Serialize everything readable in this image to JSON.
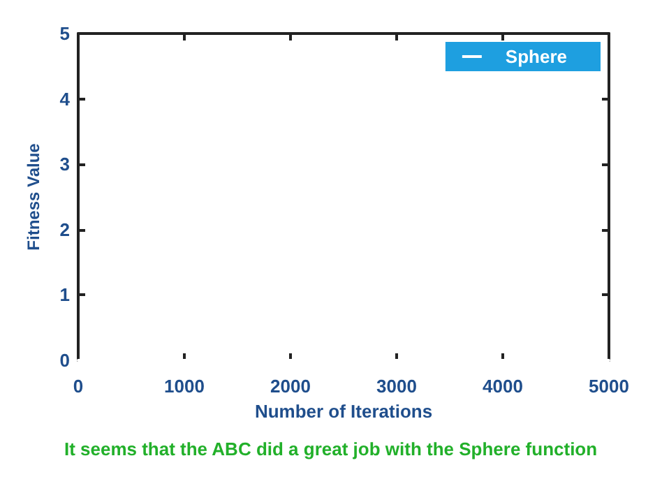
{
  "chart_data": {
    "type": "line",
    "xlabel": "Number of Iterations",
    "ylabel": "Fitness Value",
    "annotations": [
      "It seems that the ABC did a great job with the Sphere function"
    ],
    "x": [
      0,
      5000
    ],
    "series": [
      {
        "name": "Sphere",
        "color": "#ffffff",
        "values": [
          0,
          0
        ]
      }
    ],
    "xlim": [
      0,
      5000
    ],
    "xticks": [
      0,
      1000,
      2000,
      3000,
      4000,
      5000
    ],
    "ylim": [
      0,
      5
    ],
    "yticks": [
      0,
      1,
      2,
      3,
      4,
      5
    ],
    "grid": false,
    "legend": "top right",
    "marker": "none",
    "line_style": "solid"
  }
}
